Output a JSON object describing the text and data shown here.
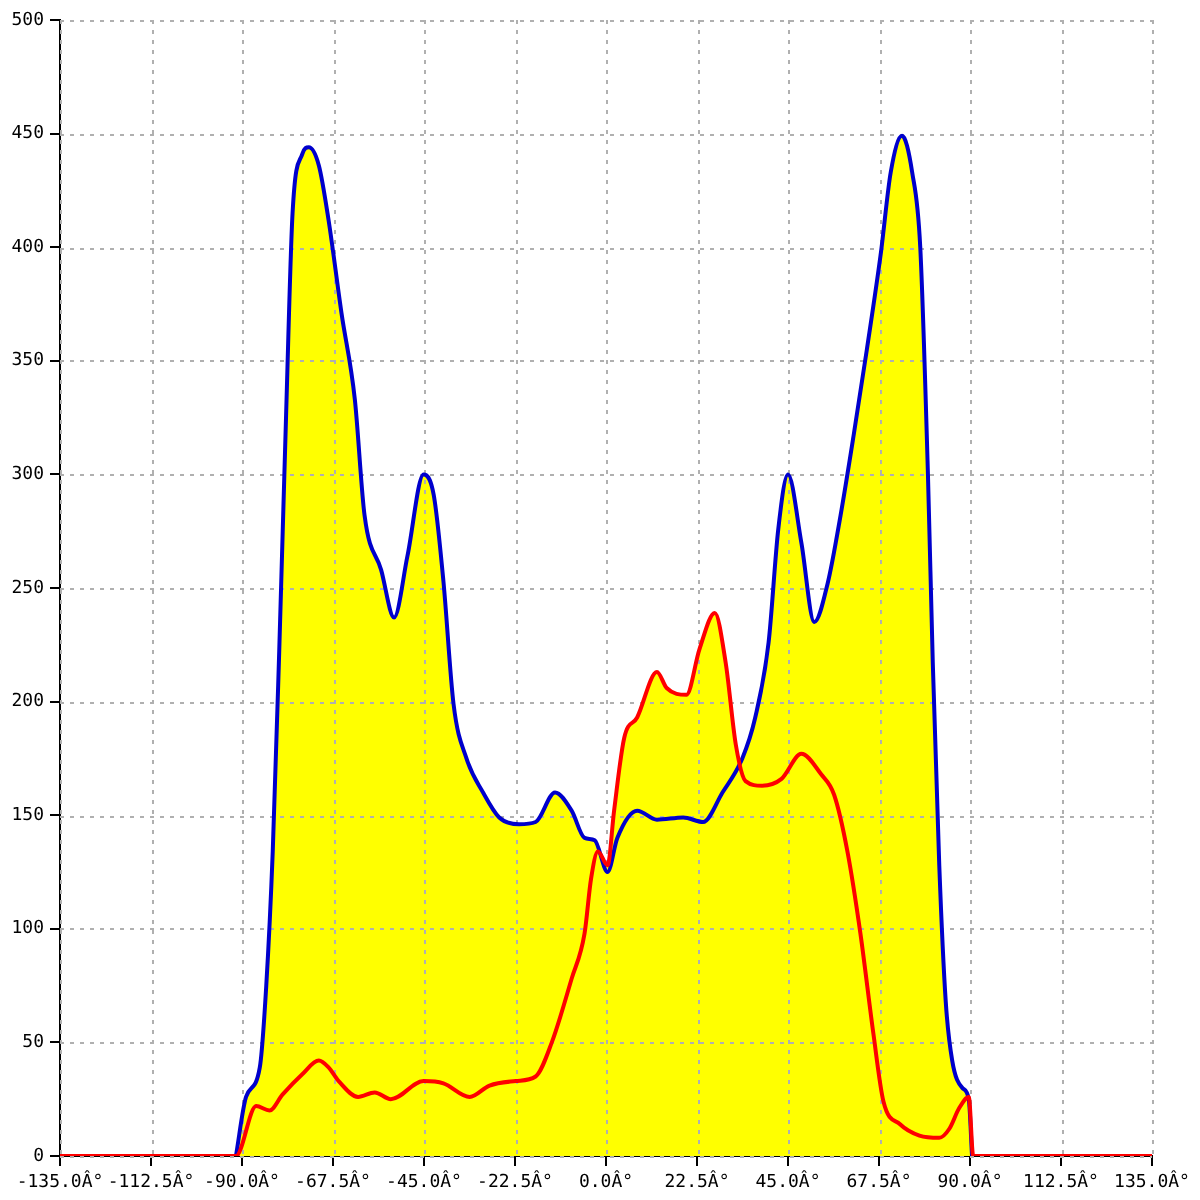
{
  "chart_data": {
    "type": "line",
    "color": "#ffff00",
    "grid": true,
    "marker": "none",
    "line_style": "solid",
    "xlim": [
      -135,
      135
    ],
    "xticks": [
      {
        "value": -135,
        "label": "-135.0Â°"
      },
      {
        "value": -112.5,
        "label": "-112.5Â°"
      },
      {
        "value": -90,
        "label": "-90.0Â°"
      },
      {
        "value": -67.5,
        "label": "-67.5Â°"
      },
      {
        "value": -45,
        "label": "-45.0Â°"
      },
      {
        "value": -22.5,
        "label": "-22.5Â°"
      },
      {
        "value": 0,
        "label": "0.0Â°"
      },
      {
        "value": 22.5,
        "label": "22.5Â°"
      },
      {
        "value": 45,
        "label": "45.0Â°"
      },
      {
        "value": 67.5,
        "label": "67.5Â°"
      },
      {
        "value": 90,
        "label": "90.0Â°"
      },
      {
        "value": 112.5,
        "label": "112.5Â°"
      },
      {
        "value": 135,
        "label": "135.0Â°"
      }
    ],
    "ylim": [
      0,
      500
    ],
    "yticks": [
      0,
      50,
      100,
      150,
      200,
      250,
      300,
      350,
      400,
      450,
      500
    ],
    "series": [
      {
        "color": "#0000cc",
        "x": [
          -91.5,
          -89,
          -85.6,
          -84,
          -82.4,
          -80.8,
          -79.1,
          -77.5,
          -75.1,
          -73.5,
          -71,
          -68.6,
          -65.4,
          -62.1,
          -59.7,
          -55.6,
          -52.4,
          -49.1,
          -45.1,
          -42.6,
          -40.2,
          -37.7,
          -34.5,
          -30.4,
          -26.4,
          -21.5,
          -17.4,
          -12.6,
          -8.5,
          -5.3,
          -2.8,
          0.4,
          2.8,
          7.7,
          12.6,
          19.1,
          24,
          28.8,
          33.7,
          36.9,
          40.2,
          42.6,
          45,
          48.3,
          51.5,
          54.8,
          58,
          61.3,
          64.5,
          68,
          70.4,
          73.2,
          75.7,
          77.7,
          79.6,
          80.8,
          82.4,
          84,
          85.6,
          88.1,
          89.7,
          90.5
        ],
        "values": [
          0,
          26,
          39,
          75,
          134,
          222,
          326,
          415,
          441,
          444,
          436,
          412,
          371,
          333,
          282,
          258,
          237,
          264,
          300,
          291,
          253,
          199,
          175,
          160,
          149,
          146,
          147,
          160,
          152,
          140,
          139,
          125,
          140,
          152,
          148,
          149,
          147,
          160,
          175,
          193,
          226,
          276,
          300,
          270,
          235,
          252,
          282,
          318,
          355,
          398,
          433,
          449,
          433,
          400,
          300,
          217,
          128,
          68,
          42,
          30,
          25,
          0
        ]
      },
      {
        "color": "#ff0000",
        "x": [
          -135,
          -91.5,
          -86.5,
          -83.2,
          -80,
          -75.1,
          -71,
          -68.6,
          -66.1,
          -61.3,
          -57.2,
          -53.2,
          -45.1,
          -40.2,
          -33.7,
          -28.8,
          -22.3,
          -17.4,
          -13.4,
          -8.5,
          -5.3,
          -3.7,
          -2,
          0.4,
          2,
          4.5,
          7.7,
          12.6,
          15,
          19.9,
          23.1,
          26.9,
          29.6,
          32.1,
          34.5,
          38.6,
          43.4,
          48.3,
          53.2,
          56.4,
          59.7,
          62.9,
          66.1,
          68.6,
          72.7,
          77.5,
          82.4,
          84.9,
          87.3,
          89.7,
          90.8,
          135
        ],
        "values": [
          0,
          0,
          22,
          20,
          27,
          36,
          42,
          39,
          33,
          26,
          28,
          25,
          33,
          32,
          26,
          31,
          33,
          35,
          50,
          78,
          98,
          122,
          134,
          128,
          152,
          184,
          193,
          213,
          206,
          203,
          223,
          239,
          217,
          181,
          165,
          163,
          166,
          177,
          168,
          159,
          134,
          98,
          54,
          24,
          14,
          9,
          8,
          12,
          21,
          26,
          0,
          0
        ]
      }
    ]
  }
}
